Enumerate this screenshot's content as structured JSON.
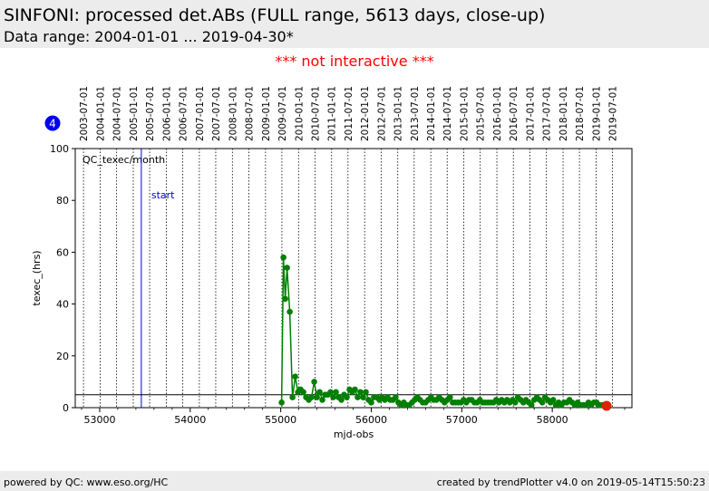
{
  "header": {
    "title": "SINFONI: processed det.ABs (FULL range, 5613 days, close-up)",
    "subtitle": "Data range: 2004-01-01 ... 2019-04-30*"
  },
  "notice": "*** not interactive ***",
  "footer": {
    "left": "powered by QC: www.eso.org/HC",
    "right": "created by trendPlotter v4.0 on 2019-05-14T15:50:23"
  },
  "chart_data": {
    "type": "line",
    "badge": "4",
    "inner_label": "QC_texec/month",
    "xlabel": "mjd-obs",
    "ylabel": "texec_(hrs)",
    "xlim": [
      52730,
      58880
    ],
    "ylim": [
      0,
      100
    ],
    "xticks": [
      53000,
      54000,
      55000,
      56000,
      57000,
      58000
    ],
    "yticks": [
      0,
      20,
      40,
      60,
      80,
      100
    ],
    "top_date_labels": [
      "2003-07-01",
      "2004-01-01",
      "2004-07-01",
      "2005-01-01",
      "2005-07-01",
      "2006-01-01",
      "2006-07-01",
      "2007-01-01",
      "2007-07-01",
      "2008-01-01",
      "2008-07-01",
      "2009-01-01",
      "2009-07-01",
      "2010-01-01",
      "2010-07-01",
      "2011-01-01",
      "2011-07-01",
      "2012-01-01",
      "2012-07-01",
      "2013-01-01",
      "2013-07-01",
      "2014-01-01",
      "2014-07-01",
      "2015-01-01",
      "2015-07-01",
      "2016-01-01",
      "2016-07-01",
      "2017-01-01",
      "2017-07-01",
      "2018-01-01",
      "2018-07-01",
      "2019-01-01",
      "2019-07-01"
    ],
    "top_date_mjd": [
      52821,
      53005,
      53187,
      53371,
      53552,
      53736,
      53917,
      54101,
      54282,
      54466,
      54648,
      54832,
      55013,
      55197,
      55378,
      55562,
      55743,
      55927,
      56109,
      56293,
      56474,
      56658,
      56839,
      57023,
      57204,
      57388,
      57570,
      57754,
      57935,
      58119,
      58300,
      58484,
      58665
    ],
    "start_marker": {
      "label": "start",
      "x": 53460
    },
    "reference_line": {
      "y": 5
    },
    "series": [
      {
        "color": "#007f00",
        "x": [
          55010,
          55030,
          55050,
          55070,
          55100,
          55130,
          55160,
          55190,
          55220,
          55250,
          55280,
          55310,
          55340,
          55370,
          55400,
          55430,
          55460,
          55490,
          55520,
          55550,
          55580,
          55610,
          55640,
          55670,
          55700,
          55730,
          55760,
          55790,
          55820,
          55850,
          55880,
          55910,
          55940,
          55970,
          56000,
          56030,
          56060,
          56090,
          56120,
          56150,
          56180,
          56210,
          56240,
          56270,
          56300,
          56330,
          56360,
          56390,
          56420,
          56450,
          56480,
          56510,
          56540,
          56570,
          56600,
          56630,
          56660,
          56690,
          56720,
          56750,
          56780,
          56810,
          56840,
          56870,
          56900,
          56930,
          56960,
          56990,
          57020,
          57050,
          57080,
          57110,
          57140,
          57170,
          57200,
          57230,
          57260,
          57290,
          57320,
          57350,
          57380,
          57410,
          57440,
          57470,
          57500,
          57530,
          57560,
          57590,
          57620,
          57650,
          57680,
          57710,
          57740,
          57770,
          57800,
          57830,
          57860,
          57890,
          57920,
          57950,
          57980,
          58010,
          58040,
          58070,
          58100,
          58130,
          58160,
          58190,
          58220,
          58250,
          58280,
          58310,
          58340,
          58370,
          58400,
          58430,
          58460,
          58490,
          58520,
          58550,
          58580
        ],
        "y": [
          2,
          58,
          42,
          54,
          37,
          4,
          12,
          6,
          7,
          6,
          4,
          3,
          4,
          10,
          4,
          6,
          3,
          5,
          5,
          6,
          4,
          6,
          4,
          3,
          5,
          4,
          7,
          6,
          7,
          4,
          6,
          4,
          6,
          3,
          2,
          4,
          4,
          3,
          4,
          3,
          4,
          3,
          3,
          4,
          2,
          1,
          2,
          1,
          1,
          2,
          3,
          4,
          3,
          2,
          2,
          3,
          4,
          3,
          3,
          4,
          3,
          2,
          3,
          4,
          2,
          2,
          2,
          2,
          3,
          2,
          3,
          3,
          2,
          2,
          3,
          2,
          2,
          2,
          2,
          2,
          3,
          2,
          3,
          2,
          3,
          2,
          3,
          2,
          4,
          3,
          2,
          3,
          2,
          1,
          3,
          4,
          3,
          2,
          4,
          3,
          2,
          3,
          1,
          2,
          1,
          2,
          2,
          3,
          2,
          1,
          2,
          1,
          1,
          1,
          2,
          1,
          2,
          2,
          1,
          1,
          1
        ]
      }
    ],
    "highlight_point": {
      "x": 58600,
      "y": 0.7,
      "color": "#dd2200"
    }
  }
}
